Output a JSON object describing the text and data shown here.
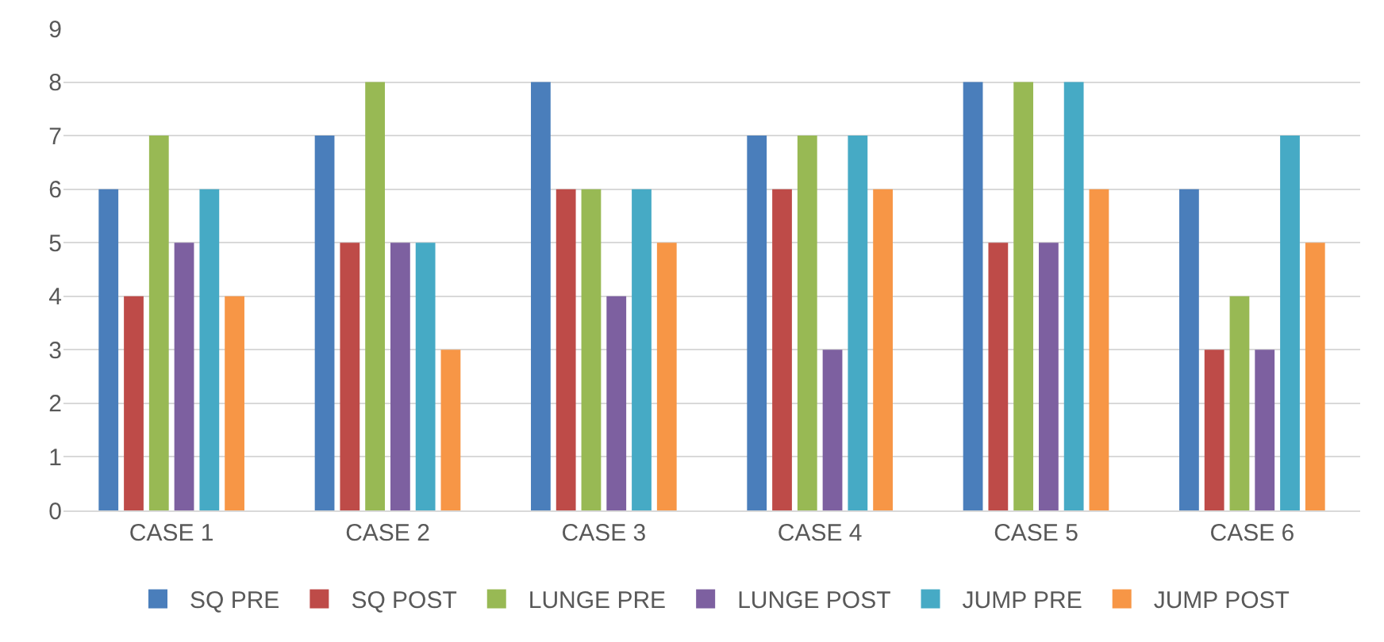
{
  "chart_data": {
    "type": "bar",
    "categories": [
      "CASE 1",
      "CASE 2",
      "CASE 3",
      "CASE 4",
      "CASE 5",
      "CASE 6"
    ],
    "series": [
      {
        "name": "SQ PRE",
        "color": "#4a7ebb",
        "values": [
          6,
          7,
          8,
          7,
          8,
          6
        ]
      },
      {
        "name": "SQ POST",
        "color": "#be4b48",
        "values": [
          4,
          5,
          6,
          6,
          5,
          3
        ]
      },
      {
        "name": "LUNGE PRE",
        "color": "#98b954",
        "values": [
          7,
          8,
          6,
          7,
          8,
          4
        ]
      },
      {
        "name": "LUNGE POST",
        "color": "#7d60a0",
        "values": [
          5,
          5,
          4,
          3,
          5,
          3
        ]
      },
      {
        "name": "JUMP PRE",
        "color": "#46aac5",
        "values": [
          6,
          5,
          6,
          7,
          8,
          7
        ]
      },
      {
        "name": "JUMP POST",
        "color": "#f79646",
        "values": [
          4,
          3,
          5,
          6,
          6,
          5
        ]
      }
    ],
    "ylim": [
      0,
      9
    ],
    "yticks": [
      0,
      1,
      2,
      3,
      4,
      5,
      6,
      7,
      8,
      9
    ],
    "grid": "y",
    "legend": "bottom"
  }
}
